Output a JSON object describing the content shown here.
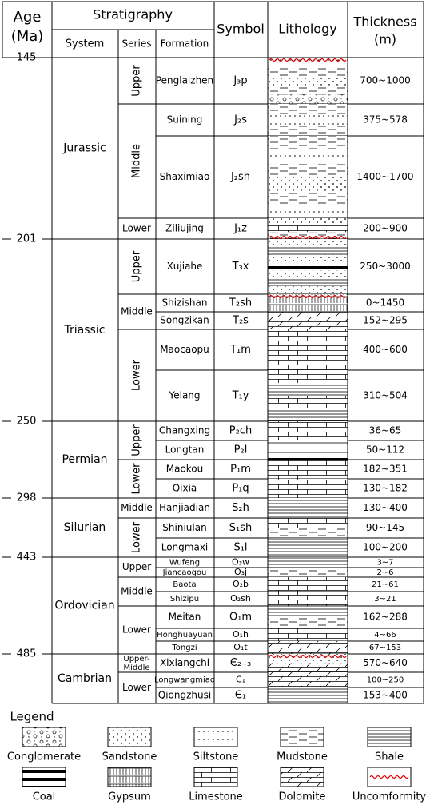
{
  "header": {
    "age": [
      "Age",
      "(Ma)"
    ],
    "stratigraphy": "Stratigraphy",
    "system": "System",
    "series": "Series",
    "formation": "Formation",
    "symbol": "Symbol",
    "lithology": "Lithology",
    "thickness": [
      "Thickness",
      "(m)"
    ]
  },
  "ages": [
    145,
    201,
    250,
    298,
    443,
    485
  ],
  "systems": [
    {
      "name": "Jurassic",
      "series": [
        {
          "name": "Upper",
          "formations": [
            {
              "name": "Penglaizhen",
              "symbol": "J₃p",
              "thickness": "700~1000"
            }
          ]
        },
        {
          "name": "Middle",
          "formations": [
            {
              "name": "Suining",
              "symbol": "J₂s",
              "thickness": "375~578"
            },
            {
              "name": "Shaximiao",
              "symbol": "J₂sh",
              "thickness": "1400~1700"
            }
          ]
        },
        {
          "name": "Lower",
          "formations": [
            {
              "name": "Ziliujing",
              "symbol": "J₁z",
              "thickness": "200~900"
            }
          ]
        }
      ]
    },
    {
      "name": "Triassic",
      "series": [
        {
          "name": "Upper",
          "formations": [
            {
              "name": "Xujiahe",
              "symbol": "T₃x",
              "thickness": "250~3000"
            }
          ]
        },
        {
          "name": "Middle",
          "formations": [
            {
              "name": "Shizishan",
              "symbol": "T₂sh",
              "thickness": "0~1450"
            },
            {
              "name": "Songzikan",
              "symbol": "T₂s",
              "thickness": "152~295"
            }
          ]
        },
        {
          "name": "Lower",
          "formations": [
            {
              "name": "Maocaopu",
              "symbol": "T₁m",
              "thickness": "400~600"
            },
            {
              "name": "Yelang",
              "symbol": "T₁y",
              "thickness": "310~504"
            }
          ]
        }
      ]
    },
    {
      "name": "Permian",
      "series": [
        {
          "name": "Upper",
          "formations": [
            {
              "name": "Changxing",
              "symbol": "P₂ch",
              "thickness": "36~65"
            },
            {
              "name": "Longtan",
              "symbol": "P₂l",
              "thickness": "50~112"
            }
          ]
        },
        {
          "name": "Lower",
          "formations": [
            {
              "name": "Maokou",
              "symbol": "P₁m",
              "thickness": "182~351"
            },
            {
              "name": "Qixia",
              "symbol": "P₁q",
              "thickness": "130~182"
            }
          ]
        }
      ]
    },
    {
      "name": "Silurian",
      "series": [
        {
          "name": "Middle",
          "formations": [
            {
              "name": "Hanjiadian",
              "symbol": "S₂h",
              "thickness": "130~400"
            }
          ]
        },
        {
          "name": "Lower",
          "formations": [
            {
              "name": "Shiniulan",
              "symbol": "S₁sh",
              "thickness": "90~145"
            },
            {
              "name": "Longmaxi",
              "symbol": "S₁l",
              "thickness": "100~200"
            }
          ]
        }
      ]
    },
    {
      "name": "Ordovician",
      "series": [
        {
          "name": "Upper",
          "formations": [
            {
              "name": "Wufeng",
              "symbol": "O₃w",
              "thickness": "3~7"
            },
            {
              "name": "Jiancaogou",
              "symbol": "O₃j",
              "thickness": "2~6"
            }
          ]
        },
        {
          "name": "Middle",
          "formations": [
            {
              "name": "Baota",
              "symbol": "O₂b",
              "thickness": "21~61"
            },
            {
              "name": "Shizipu",
              "symbol": "O₂sh",
              "thickness": "3~21"
            }
          ]
        },
        {
          "name": "Lower",
          "formations": [
            {
              "name": "Meitan",
              "symbol": "O₁m",
              "thickness": "162~288"
            },
            {
              "name": "Honghuayuan",
              "symbol": "O₁h",
              "thickness": "4~66"
            },
            {
              "name": "Tongzi",
              "symbol": "O₁t",
              "thickness": "67~153"
            }
          ]
        }
      ]
    },
    {
      "name": "Cambrian",
      "series": [
        {
          "name": [
            "Upper-",
            "Middle"
          ],
          "formations": [
            {
              "name": "Xixiangchi",
              "symbol": "Є₂₋₃",
              "thickness": "570~640"
            }
          ]
        },
        {
          "name": "Lower",
          "formations": [
            {
              "name": "Longwangmiao",
              "symbol": "Є₁",
              "thickness": "100~250"
            },
            {
              "name": "Qiongzhusi",
              "symbol": "Є₁",
              "thickness": "153~400"
            }
          ]
        }
      ]
    }
  ],
  "legend": {
    "title": "Legend",
    "items": [
      "Conglomerate",
      "Sandstone",
      "Siltstone",
      "Mudstone",
      "Shale",
      "Coal",
      "Gypsum",
      "Limestone",
      "Dolomite",
      "Uncomformity"
    ]
  }
}
